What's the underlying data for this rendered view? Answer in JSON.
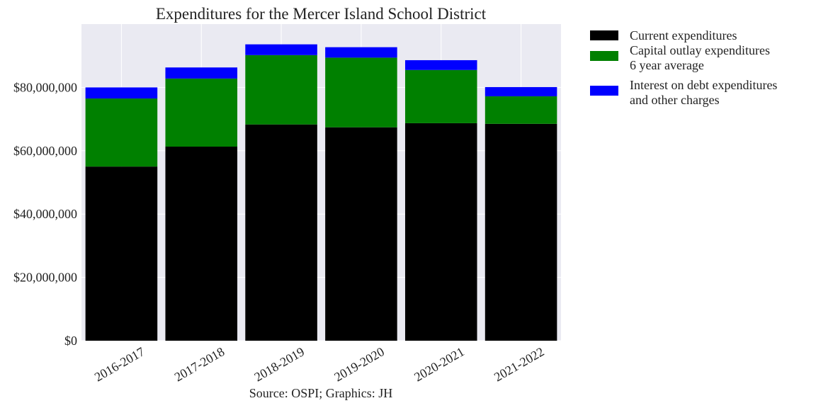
{
  "chart_data": {
    "type": "bar",
    "stacked": true,
    "title": "Expenditures for the Mercer Island School District",
    "xlabel": "",
    "ylabel": "",
    "source": "Source: OSPI; Graphics: JH",
    "categories": [
      "2016-2017",
      "2017-2018",
      "2018-2019",
      "2019-2020",
      "2020-2021",
      "2021-2022"
    ],
    "ylim": [
      0,
      100000000
    ],
    "yticks": [
      0,
      20000000,
      40000000,
      60000000,
      80000000
    ],
    "ytick_labels": [
      "$0",
      "$20,000,000",
      "$40,000,000",
      "$60,000,000",
      "$80,000,000"
    ],
    "grid": true,
    "legend_position": "outside-top-right",
    "series": [
      {
        "name": "Current expenditures",
        "color": "#000000",
        "values": [
          55000000,
          61300000,
          68300000,
          67400000,
          68700000,
          68500000
        ]
      },
      {
        "name": "Capital outlay expenditures\n6 year average",
        "color": "#008000",
        "values": [
          21500000,
          21500000,
          21900000,
          22000000,
          16800000,
          8700000
        ]
      },
      {
        "name": "Interest on debt expenditures\nand other charges",
        "color": "#0000ff",
        "values": [
          3500000,
          3500000,
          3400000,
          3300000,
          3100000,
          2900000
        ]
      }
    ]
  }
}
